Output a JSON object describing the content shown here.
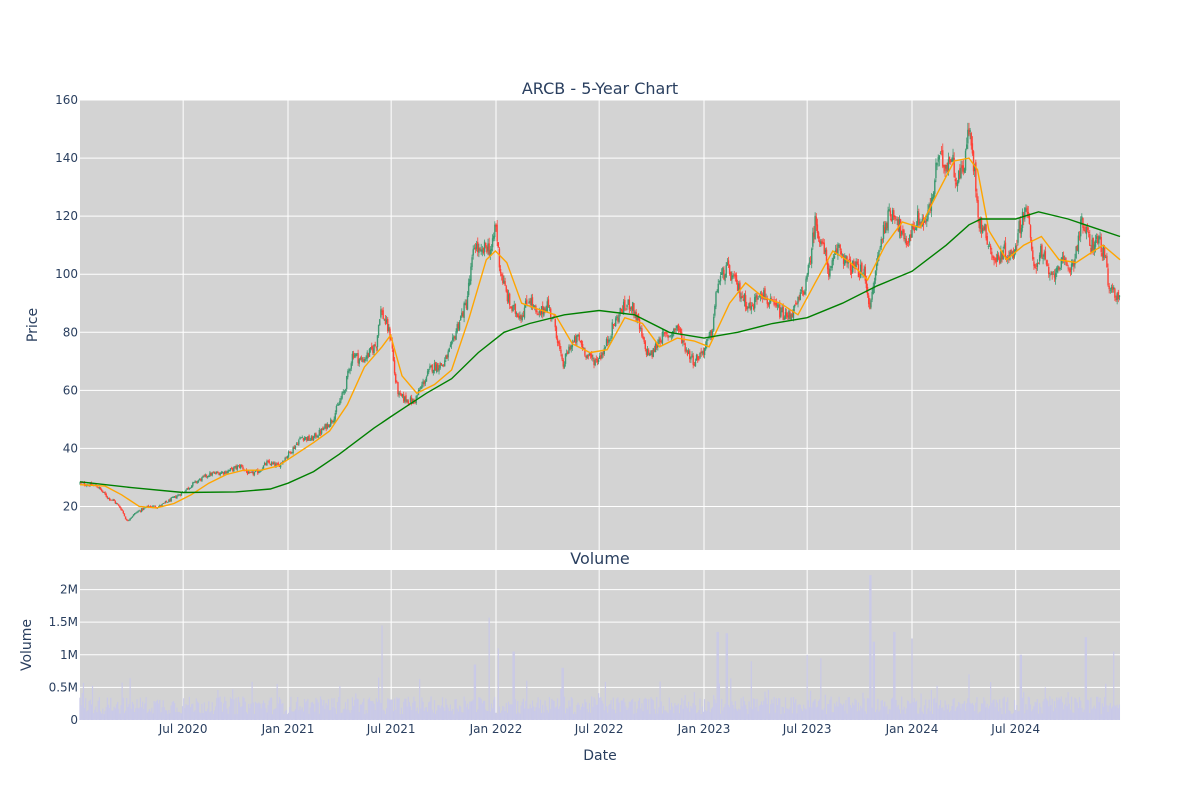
{
  "colors": {
    "background": "#ffffff",
    "plot_background": "#d3d3d3",
    "grid": "#ffffff",
    "text": "#2a3f5f",
    "candle_up": "#3d9970",
    "candle_down": "#ff4136",
    "ma_short": "#ffa500",
    "ma_long": "#008000",
    "volume_bar": "#c9c9e8"
  },
  "chart_data": [
    {
      "type": "candlestick",
      "title": "ARCB - 5-Year Chart",
      "ylabel": "Price",
      "ylim": [
        5,
        160
      ],
      "xlim": [
        "2020-01-02",
        "2024-12-31"
      ],
      "grid": true,
      "legend": "none",
      "yticks": [
        20,
        40,
        60,
        80,
        100,
        120,
        140,
        160
      ],
      "close_path": [
        [
          "2020-01-02",
          28
        ],
        [
          "2020-02-01",
          27
        ],
        [
          "2020-02-20",
          23
        ],
        [
          "2020-03-01",
          22
        ],
        [
          "2020-03-15",
          19
        ],
        [
          "2020-03-24",
          15
        ],
        [
          "2020-04-10",
          18
        ],
        [
          "2020-05-01",
          20
        ],
        [
          "2020-05-20",
          20
        ],
        [
          "2020-06-15",
          23
        ],
        [
          "2020-07-01",
          25
        ],
        [
          "2020-07-20",
          28
        ],
        [
          "2020-08-15",
          31
        ],
        [
          "2020-09-15",
          32
        ],
        [
          "2020-10-10",
          34
        ],
        [
          "2020-10-25",
          31
        ],
        [
          "2020-11-10",
          32
        ],
        [
          "2020-11-25",
          35
        ],
        [
          "2020-12-15",
          34
        ],
        [
          "2021-01-10",
          40
        ],
        [
          "2021-01-25",
          44
        ],
        [
          "2021-02-10",
          43
        ],
        [
          "2021-03-01",
          46
        ],
        [
          "2021-03-20",
          50
        ],
        [
          "2021-04-10",
          60
        ],
        [
          "2021-04-25",
          73
        ],
        [
          "2021-05-10",
          70
        ],
        [
          "2021-05-25",
          73
        ],
        [
          "2021-06-05",
          76
        ],
        [
          "2021-06-12",
          88
        ],
        [
          "2021-06-20",
          84
        ],
        [
          "2021-07-01",
          78
        ],
        [
          "2021-07-08",
          64
        ],
        [
          "2021-07-15",
          58
        ],
        [
          "2021-07-25",
          57
        ],
        [
          "2021-08-10",
          56
        ],
        [
          "2021-08-25",
          62
        ],
        [
          "2021-09-10",
          68
        ],
        [
          "2021-10-01",
          69
        ],
        [
          "2021-10-15",
          75
        ],
        [
          "2021-10-25",
          82
        ],
        [
          "2021-11-10",
          90
        ],
        [
          "2021-11-25",
          111
        ],
        [
          "2021-12-05",
          106
        ],
        [
          "2021-12-15",
          110
        ],
        [
          "2021-12-25",
          108
        ],
        [
          "2021-12-31",
          118
        ],
        [
          "2022-01-08",
          102
        ],
        [
          "2022-01-18",
          94
        ],
        [
          "2022-01-28",
          88
        ],
        [
          "2022-02-15",
          86
        ],
        [
          "2022-03-01",
          92
        ],
        [
          "2022-03-15",
          85
        ],
        [
          "2022-04-01",
          90
        ],
        [
          "2022-04-15",
          82
        ],
        [
          "2022-04-28",
          68
        ],
        [
          "2022-05-10",
          75
        ],
        [
          "2022-05-25",
          78
        ],
        [
          "2022-06-10",
          72
        ],
        [
          "2022-06-25",
          70
        ],
        [
          "2022-07-10",
          74
        ],
        [
          "2022-07-25",
          82
        ],
        [
          "2022-08-10",
          88
        ],
        [
          "2022-08-25",
          90
        ],
        [
          "2022-09-05",
          85
        ],
        [
          "2022-09-20",
          74
        ],
        [
          "2022-10-01",
          72
        ],
        [
          "2022-10-15",
          78
        ],
        [
          "2022-11-01",
          79
        ],
        [
          "2022-11-15",
          82
        ],
        [
          "2022-12-01",
          74
        ],
        [
          "2022-12-15",
          70
        ],
        [
          "2023-01-01",
          74
        ],
        [
          "2023-01-15",
          80
        ],
        [
          "2023-01-25",
          97
        ],
        [
          "2023-02-10",
          102
        ],
        [
          "2023-02-25",
          97
        ],
        [
          "2023-03-10",
          92
        ],
        [
          "2023-03-25",
          88
        ],
        [
          "2023-04-10",
          95
        ],
        [
          "2023-04-25",
          90
        ],
        [
          "2023-05-10",
          88
        ],
        [
          "2023-05-25",
          85
        ],
        [
          "2023-06-10",
          88
        ],
        [
          "2023-06-25",
          95
        ],
        [
          "2023-07-01",
          98
        ],
        [
          "2023-07-15",
          118
        ],
        [
          "2023-07-25",
          112
        ],
        [
          "2023-08-10",
          100
        ],
        [
          "2023-08-25",
          110
        ],
        [
          "2023-09-10",
          103
        ],
        [
          "2023-09-25",
          102
        ],
        [
          "2023-10-10",
          100
        ],
        [
          "2023-10-20",
          88
        ],
        [
          "2023-11-01",
          105
        ],
        [
          "2023-11-15",
          118
        ],
        [
          "2023-12-01",
          122
        ],
        [
          "2023-12-20",
          110
        ],
        [
          "2024-01-10",
          119
        ],
        [
          "2024-01-25",
          118
        ],
        [
          "2024-02-05",
          125
        ],
        [
          "2024-02-15",
          140
        ],
        [
          "2024-03-01",
          138
        ],
        [
          "2024-03-10",
          141
        ],
        [
          "2024-03-20",
          132
        ],
        [
          "2024-04-01",
          138
        ],
        [
          "2024-04-10",
          150
        ],
        [
          "2024-04-20",
          135
        ],
        [
          "2024-04-28",
          118
        ],
        [
          "2024-05-10",
          114
        ],
        [
          "2024-05-25",
          104
        ],
        [
          "2024-06-10",
          108
        ],
        [
          "2024-06-25",
          106
        ],
        [
          "2024-07-10",
          118
        ],
        [
          "2024-07-20",
          124
        ],
        [
          "2024-08-01",
          102
        ],
        [
          "2024-08-15",
          108
        ],
        [
          "2024-09-01",
          98
        ],
        [
          "2024-09-15",
          104
        ],
        [
          "2024-10-01",
          102
        ],
        [
          "2024-10-10",
          104
        ],
        [
          "2024-10-25",
          118
        ],
        [
          "2024-11-10",
          110
        ],
        [
          "2024-11-25",
          112
        ],
        [
          "2024-12-05",
          105
        ],
        [
          "2024-12-12",
          94
        ],
        [
          "2024-12-31",
          93
        ]
      ],
      "ma_short": [
        [
          "2020-01-02",
          27.5
        ],
        [
          "2020-02-15",
          27
        ],
        [
          "2020-03-15",
          24
        ],
        [
          "2020-04-15",
          20
        ],
        [
          "2020-05-15",
          19.5
        ],
        [
          "2020-06-15",
          21
        ],
        [
          "2020-07-15",
          24
        ],
        [
          "2020-08-15",
          28
        ],
        [
          "2020-09-15",
          31
        ],
        [
          "2020-10-15",
          32.5
        ],
        [
          "2020-11-15",
          32.5
        ],
        [
          "2020-12-15",
          34
        ],
        [
          "2021-01-15",
          38
        ],
        [
          "2021-02-15",
          42
        ],
        [
          "2021-03-15",
          46
        ],
        [
          "2021-04-15",
          55
        ],
        [
          "2021-05-15",
          68
        ],
        [
          "2021-06-15",
          75
        ],
        [
          "2021-06-30",
          79
        ],
        [
          "2021-07-20",
          65
        ],
        [
          "2021-08-15",
          59
        ],
        [
          "2021-09-15",
          62
        ],
        [
          "2021-10-15",
          67
        ],
        [
          "2021-11-15",
          85
        ],
        [
          "2021-12-15",
          105
        ],
        [
          "2021-12-31",
          108
        ],
        [
          "2022-01-20",
          104
        ],
        [
          "2022-02-15",
          90
        ],
        [
          "2022-03-15",
          88
        ],
        [
          "2022-04-15",
          86
        ],
        [
          "2022-05-15",
          76
        ],
        [
          "2022-06-15",
          73
        ],
        [
          "2022-07-15",
          74
        ],
        [
          "2022-08-15",
          85
        ],
        [
          "2022-09-15",
          83
        ],
        [
          "2022-10-15",
          75
        ],
        [
          "2022-11-15",
          78
        ],
        [
          "2022-12-15",
          77
        ],
        [
          "2023-01-10",
          75
        ],
        [
          "2023-02-15",
          90
        ],
        [
          "2023-03-15",
          97
        ],
        [
          "2023-04-15",
          92
        ],
        [
          "2023-05-15",
          90
        ],
        [
          "2023-06-15",
          86
        ],
        [
          "2023-07-15",
          97
        ],
        [
          "2023-08-15",
          108
        ],
        [
          "2023-09-15",
          104
        ],
        [
          "2023-10-15",
          98
        ],
        [
          "2023-11-15",
          110
        ],
        [
          "2023-12-15",
          118
        ],
        [
          "2024-01-15",
          116
        ],
        [
          "2024-02-15",
          128
        ],
        [
          "2024-03-15",
          139
        ],
        [
          "2024-04-10",
          140
        ],
        [
          "2024-04-25",
          136
        ],
        [
          "2024-05-15",
          115
        ],
        [
          "2024-06-15",
          105
        ],
        [
          "2024-07-15",
          110
        ],
        [
          "2024-08-15",
          113
        ],
        [
          "2024-09-15",
          105
        ],
        [
          "2024-10-15",
          104
        ],
        [
          "2024-11-15",
          108
        ],
        [
          "2024-12-01",
          110
        ],
        [
          "2024-12-31",
          105
        ]
      ],
      "ma_long": [
        [
          "2020-01-02",
          28.5
        ],
        [
          "2020-04-01",
          26.5
        ],
        [
          "2020-07-01",
          24.8
        ],
        [
          "2020-10-01",
          25
        ],
        [
          "2020-12-01",
          26
        ],
        [
          "2021-01-01",
          28
        ],
        [
          "2021-02-15",
          32
        ],
        [
          "2021-04-01",
          38
        ],
        [
          "2021-06-01",
          47
        ],
        [
          "2021-07-01",
          51
        ],
        [
          "2021-08-01",
          55
        ],
        [
          "2021-09-01",
          59
        ],
        [
          "2021-10-15",
          64
        ],
        [
          "2021-12-01",
          73
        ],
        [
          "2022-01-15",
          80
        ],
        [
          "2022-03-01",
          83
        ],
        [
          "2022-05-01",
          86
        ],
        [
          "2022-07-01",
          87.5
        ],
        [
          "2022-09-01",
          86
        ],
        [
          "2022-11-01",
          80
        ],
        [
          "2023-01-01",
          78
        ],
        [
          "2023-03-01",
          80
        ],
        [
          "2023-05-01",
          83
        ],
        [
          "2023-07-01",
          85
        ],
        [
          "2023-09-01",
          90
        ],
        [
          "2023-11-01",
          96
        ],
        [
          "2024-01-01",
          101
        ],
        [
          "2024-03-01",
          110
        ],
        [
          "2024-04-10",
          117
        ],
        [
          "2024-05-01",
          119
        ],
        [
          "2024-07-01",
          119
        ],
        [
          "2024-08-10",
          121.5
        ],
        [
          "2024-10-01",
          119
        ],
        [
          "2024-11-15",
          116
        ],
        [
          "2024-12-31",
          113
        ]
      ]
    },
    {
      "type": "bar",
      "title": "Volume",
      "xlabel": "Date",
      "ylabel": "Volume",
      "ylim": [
        0,
        2300000
      ],
      "yticks": [
        {
          "value": 0,
          "label": "0"
        },
        {
          "value": 500000,
          "label": "0.5M"
        },
        {
          "value": 1000000,
          "label": "1M"
        },
        {
          "value": 1500000,
          "label": "1.5M"
        },
        {
          "value": 2000000,
          "label": "2M"
        }
      ],
      "xticks": [
        {
          "date": "2020-07-01",
          "label": "Jul 2020"
        },
        {
          "date": "2021-01-01",
          "label": "Jan 2021"
        },
        {
          "date": "2021-07-01",
          "label": "Jul 2021"
        },
        {
          "date": "2022-01-01",
          "label": "Jan 2022"
        },
        {
          "date": "2022-07-01",
          "label": "Jul 2022"
        },
        {
          "date": "2023-01-01",
          "label": "Jan 2023"
        },
        {
          "date": "2023-07-01",
          "label": "Jul 2023"
        },
        {
          "date": "2024-01-01",
          "label": "Jan 2024"
        },
        {
          "date": "2024-07-01",
          "label": "Jul 2024"
        }
      ],
      "typical_volume": 250000,
      "spikes": [
        [
          "2021-06-15",
          1450000
        ],
        [
          "2021-11-25",
          850000
        ],
        [
          "2021-12-20",
          1570000
        ],
        [
          "2022-01-05",
          1100000
        ],
        [
          "2022-02-01",
          1050000
        ],
        [
          "2022-04-28",
          800000
        ],
        [
          "2023-01-25",
          1350000
        ],
        [
          "2023-02-10",
          1330000
        ],
        [
          "2023-03-25",
          900000
        ],
        [
          "2023-07-01",
          1000000
        ],
        [
          "2023-07-25",
          950000
        ],
        [
          "2023-10-20",
          2220000
        ],
        [
          "2023-10-26",
          1200000
        ],
        [
          "2023-12-01",
          1350000
        ],
        [
          "2024-01-01",
          1250000
        ],
        [
          "2024-04-10",
          700000
        ],
        [
          "2024-07-10",
          1000000
        ],
        [
          "2024-11-01",
          1270000
        ],
        [
          "2024-12-20",
          1050000
        ]
      ]
    }
  ]
}
